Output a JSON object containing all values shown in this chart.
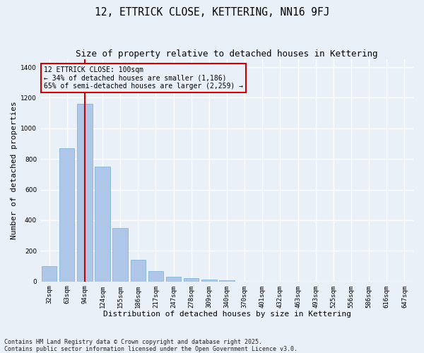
{
  "title": "12, ETTRICK CLOSE, KETTERING, NN16 9FJ",
  "subtitle": "Size of property relative to detached houses in Kettering",
  "xlabel": "Distribution of detached houses by size in Kettering",
  "ylabel": "Number of detached properties",
  "categories": [
    "32sqm",
    "63sqm",
    "94sqm",
    "124sqm",
    "155sqm",
    "186sqm",
    "217sqm",
    "247sqm",
    "278sqm",
    "309sqm",
    "340sqm",
    "370sqm",
    "401sqm",
    "432sqm",
    "463sqm",
    "493sqm",
    "525sqm",
    "556sqm",
    "586sqm",
    "616sqm",
    "647sqm"
  ],
  "values": [
    100,
    870,
    1160,
    750,
    350,
    140,
    68,
    30,
    20,
    13,
    8,
    0,
    0,
    0,
    0,
    0,
    0,
    0,
    0,
    0,
    0
  ],
  "bar_color": "#aec6e8",
  "bar_edge_color": "#7aaed0",
  "background_color": "#eaf0f8",
  "grid_color": "#ffffff",
  "vline_x": 2,
  "vline_color": "#cc0000",
  "annotation_text": "12 ETTRICK CLOSE: 100sqm\n← 34% of detached houses are smaller (1,186)\n65% of semi-detached houses are larger (2,259) →",
  "annotation_box_color": "#cc0000",
  "footnote": "Contains HM Land Registry data © Crown copyright and database right 2025.\nContains public sector information licensed under the Open Government Licence v3.0.",
  "ylim": [
    0,
    1450
  ],
  "title_fontsize": 10.5,
  "subtitle_fontsize": 9,
  "xlabel_fontsize": 8,
  "ylabel_fontsize": 8,
  "tick_fontsize": 6.5,
  "annotation_fontsize": 7,
  "footnote_fontsize": 6
}
